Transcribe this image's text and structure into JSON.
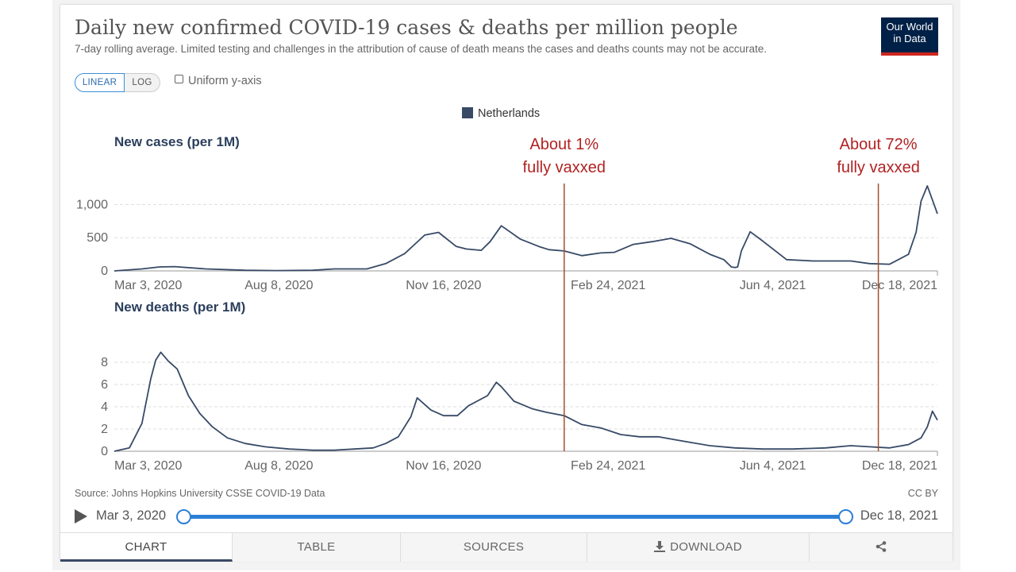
{
  "header": {
    "title": "Daily new confirmed COVID-19 cases & deaths per million people",
    "subtitle": "7-day rolling average. Limited testing and challenges in the attribution of cause of death means the cases and deaths counts may not be accurate.",
    "logo_line1": "Our World",
    "logo_line2": "in Data"
  },
  "controls": {
    "linear_label": "LINEAR",
    "log_label": "LOG",
    "uniform_label": "Uniform y-axis"
  },
  "colors": {
    "series": "#374a66",
    "annotation": "#b22222",
    "accent": "#2b7fd6"
  },
  "chart_data": [
    {
      "type": "line",
      "title": "New cases (per 1M)",
      "legend": [
        "Netherlands"
      ],
      "x_tick_labels": [
        "Mar 3, 2020",
        "Aug 8, 2020",
        "Nov 16, 2020",
        "Feb 24, 2021",
        "Jun 4, 2021",
        "Dec 18, 2021"
      ],
      "x_range": [
        "2020-03-03",
        "2021-12-18"
      ],
      "ylim": [
        0,
        1280
      ],
      "y_ticks": [
        0,
        500,
        1000
      ],
      "y_tick_labels": [
        "0",
        "500",
        "1,000"
      ],
      "grid": true,
      "series": [
        {
          "name": "Netherlands",
          "x": [
            "2020-03-03",
            "2020-03-25",
            "2020-04-08",
            "2020-04-20",
            "2020-05-15",
            "2020-06-15",
            "2020-07-10",
            "2020-08-08",
            "2020-08-25",
            "2020-09-20",
            "2020-10-05",
            "2020-10-20",
            "2020-10-28",
            "2020-11-05",
            "2020-11-16",
            "2020-11-30",
            "2020-12-08",
            "2020-12-20",
            "2020-12-27",
            "2021-01-05",
            "2021-01-20",
            "2021-02-05",
            "2021-02-12",
            "2021-02-24",
            "2021-03-10",
            "2021-03-25",
            "2021-04-05",
            "2021-04-20",
            "2021-05-05",
            "2021-05-20",
            "2021-06-04",
            "2021-06-20",
            "2021-07-01",
            "2021-07-07",
            "2021-07-10",
            "2021-07-12",
            "2021-07-15",
            "2021-07-22",
            "2021-08-01",
            "2021-08-20",
            "2021-09-10",
            "2021-09-25",
            "2021-10-10",
            "2021-10-25",
            "2021-11-10",
            "2021-11-25",
            "2021-12-01",
            "2021-12-05",
            "2021-12-10",
            "2021-12-18"
          ],
          "y": [
            0,
            30,
            60,
            65,
            30,
            10,
            5,
            10,
            30,
            30,
            110,
            260,
            400,
            540,
            580,
            370,
            330,
            310,
            440,
            680,
            480,
            360,
            320,
            300,
            230,
            270,
            280,
            400,
            440,
            490,
            410,
            250,
            170,
            60,
            50,
            60,
            300,
            590,
            450,
            170,
            150,
            150,
            150,
            110,
            100,
            250,
            580,
            1050,
            1280,
            860
          ]
        }
      ]
    },
    {
      "type": "line",
      "title": "New deaths (per 1M)",
      "legend": [
        "Netherlands"
      ],
      "x_tick_labels": [
        "Mar 3, 2020",
        "Aug 8, 2020",
        "Nov 16, 2020",
        "Feb 24, 2021",
        "Jun 4, 2021",
        "Dec 18, 2021"
      ],
      "x_range": [
        "2020-03-03",
        "2021-12-18"
      ],
      "ylim": [
        0,
        9
      ],
      "y_ticks": [
        0,
        2,
        4,
        6,
        8
      ],
      "y_tick_labels": [
        "0",
        "2",
        "4",
        "6",
        "8"
      ],
      "grid": true,
      "series": [
        {
          "name": "Netherlands",
          "x": [
            "2020-03-03",
            "2020-03-15",
            "2020-03-25",
            "2020-04-01",
            "2020-04-05",
            "2020-04-09",
            "2020-04-15",
            "2020-04-22",
            "2020-05-01",
            "2020-05-10",
            "2020-05-20",
            "2020-06-01",
            "2020-06-15",
            "2020-07-01",
            "2020-07-20",
            "2020-08-08",
            "2020-08-25",
            "2020-09-10",
            "2020-09-25",
            "2020-10-05",
            "2020-10-15",
            "2020-10-25",
            "2020-10-30",
            "2020-11-10",
            "2020-11-20",
            "2020-12-01",
            "2020-12-10",
            "2020-12-25",
            "2021-01-01",
            "2021-01-05",
            "2021-01-15",
            "2021-01-30",
            "2021-02-10",
            "2021-02-24",
            "2021-03-10",
            "2021-03-25",
            "2021-04-10",
            "2021-04-25",
            "2021-05-10",
            "2021-05-25",
            "2021-06-04",
            "2021-06-20",
            "2021-07-10",
            "2021-08-01",
            "2021-08-25",
            "2021-09-20",
            "2021-10-10",
            "2021-10-25",
            "2021-11-10",
            "2021-11-25",
            "2021-12-05",
            "2021-12-10",
            "2021-12-14",
            "2021-12-18"
          ],
          "y": [
            0,
            0.3,
            2.5,
            6.5,
            8.2,
            8.9,
            8.1,
            7.4,
            5.0,
            3.4,
            2.2,
            1.2,
            0.7,
            0.4,
            0.2,
            0.1,
            0.1,
            0.2,
            0.3,
            0.7,
            1.3,
            3.1,
            4.8,
            3.7,
            3.2,
            3.2,
            4.1,
            5.0,
            6.2,
            5.8,
            4.5,
            3.8,
            3.5,
            3.2,
            2.4,
            2.1,
            1.5,
            1.3,
            1.3,
            1.0,
            0.8,
            0.5,
            0.3,
            0.2,
            0.2,
            0.3,
            0.5,
            0.4,
            0.3,
            0.6,
            1.2,
            2.2,
            3.6,
            2.8
          ]
        }
      ]
    }
  ],
  "annotations": [
    {
      "date": "2021-02-24",
      "line1": "About 1%",
      "line2": "fully vaxxed"
    },
    {
      "date": "2021-11-01",
      "line1": "About 72%",
      "line2": "fully vaxxed"
    }
  ],
  "footer": {
    "source": "Source: Johns Hopkins University CSSE COVID-19 Data",
    "license": "CC BY"
  },
  "timeline": {
    "start_label": "Mar 3, 2020",
    "end_label": "Dec 18, 2021",
    "start_fraction": 0,
    "end_fraction": 1
  },
  "tabs": {
    "chart": "CHART",
    "table": "TABLE",
    "sources": "SOURCES",
    "download": "DOWNLOAD"
  }
}
